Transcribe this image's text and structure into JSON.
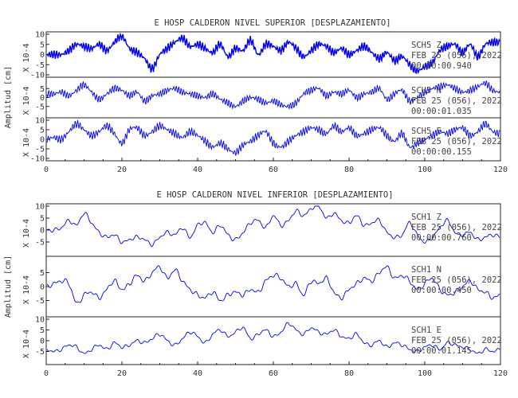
{
  "chart_data": [
    {
      "type": "line",
      "title": "E HOSP CALDERON NIVEL SUPERIOR [DESPLAZAMIENTO]",
      "ylabel": "Amplitud [cm]",
      "xlim": [
        0,
        120
      ],
      "x_ticks": [
        0,
        20,
        40,
        60,
        80,
        100,
        120
      ],
      "color": "#0000ee",
      "channels": [
        {
          "unit_label": "X 10-4",
          "y_ticks": [
            10,
            5,
            0,
            -5,
            -10
          ],
          "ylim": [
            -10,
            10
          ],
          "annotation": [
            "SCH5   Z",
            "FEB 25 (056), 2022",
            "00:00:00.940"
          ],
          "x": [
            0,
            2,
            4,
            6,
            8,
            10,
            12,
            14,
            16,
            18,
            20,
            22,
            24,
            26,
            28,
            30,
            32,
            34,
            36,
            38,
            40,
            42,
            44,
            46,
            48,
            50,
            52,
            54,
            56,
            58,
            60,
            62,
            64,
            66,
            68,
            70,
            72,
            74,
            76,
            78,
            80,
            82,
            84,
            86,
            88,
            90,
            92,
            94,
            96,
            98,
            100,
            102,
            104,
            106,
            108,
            110,
            112,
            114,
            116,
            118,
            120
          ],
          "values": [
            0,
            0,
            0,
            2,
            5,
            4,
            3,
            5,
            2,
            6,
            9,
            3,
            1,
            -2,
            -7,
            0,
            3,
            6,
            8,
            4,
            5,
            3,
            1,
            5,
            -1,
            3,
            2,
            7,
            0,
            5,
            4,
            2,
            6,
            3,
            -1,
            2,
            5,
            4,
            1,
            3,
            0,
            2,
            4,
            1,
            -2,
            1,
            -3,
            -1,
            -5,
            -8,
            -6,
            -4,
            2,
            4,
            5,
            1,
            5,
            -1,
            5,
            6,
            6
          ]
        },
        {
          "unit_label": "X 10-4",
          "y_ticks": [
            5,
            0,
            -5
          ],
          "ylim": [
            -10,
            10
          ],
          "annotation": [
            "SCH5   N",
            "FEB 25 (056), 2022",
            "00:00:01.035"
          ],
          "x": [
            0,
            2,
            4,
            6,
            8,
            10,
            12,
            14,
            16,
            18,
            20,
            22,
            24,
            26,
            28,
            30,
            32,
            34,
            36,
            38,
            40,
            42,
            44,
            46,
            48,
            50,
            52,
            54,
            56,
            58,
            60,
            62,
            64,
            66,
            68,
            70,
            72,
            74,
            76,
            78,
            80,
            82,
            84,
            86,
            88,
            90,
            92,
            94,
            96,
            98,
            100,
            102,
            104,
            106,
            108,
            110,
            112,
            114,
            116,
            118,
            120
          ],
          "values": [
            2,
            2,
            3,
            1,
            4,
            7,
            3,
            -1,
            2,
            5,
            4,
            1,
            3,
            -2,
            1,
            2,
            4,
            5,
            3,
            2,
            1,
            0,
            2,
            -1,
            -3,
            -5,
            -2,
            0,
            -1,
            -3,
            -2,
            -4,
            -5,
            -3,
            2,
            4,
            5,
            1,
            3,
            2,
            4,
            0,
            2,
            3,
            5,
            -1,
            2,
            4,
            -2,
            0,
            3,
            5,
            6,
            7,
            5,
            3,
            4,
            6,
            8,
            4,
            3
          ]
        },
        {
          "unit_label": "X 10-4",
          "y_ticks": [
            10,
            5,
            0,
            -5,
            -10
          ],
          "ylim": [
            -10,
            10
          ],
          "annotation": [
            "SCH5   E",
            "FEB 25 (056), 2022",
            "00:00:00.155"
          ],
          "x": [
            0,
            2,
            4,
            6,
            8,
            10,
            12,
            14,
            16,
            18,
            20,
            22,
            24,
            26,
            28,
            30,
            32,
            34,
            36,
            38,
            40,
            42,
            44,
            46,
            48,
            50,
            52,
            54,
            56,
            58,
            60,
            62,
            64,
            66,
            68,
            70,
            72,
            74,
            76,
            78,
            80,
            82,
            84,
            86,
            88,
            90,
            92,
            94,
            96,
            98,
            100,
            102,
            104,
            106,
            108,
            110,
            112,
            114,
            116,
            118,
            120
          ],
          "values": [
            0,
            1,
            0,
            4,
            8,
            5,
            2,
            4,
            7,
            3,
            -2,
            5,
            6,
            2,
            4,
            7,
            5,
            3,
            1,
            4,
            2,
            -1,
            -4,
            -2,
            -5,
            -7,
            -3,
            -1,
            2,
            4,
            -2,
            -4,
            -1,
            2,
            4,
            6,
            5,
            3,
            7,
            4,
            6,
            2,
            3,
            5,
            6,
            2,
            -1,
            3,
            -4,
            -2,
            0,
            2,
            4,
            3,
            5,
            6,
            2,
            4,
            8,
            4,
            3
          ]
        }
      ]
    },
    {
      "type": "line",
      "title": "E HOSP CALDERON NIVEL INFERIOR [DESPLAZAMIENTO]",
      "ylabel": "Amplitud [cm]",
      "xlim": [
        0,
        120
      ],
      "x_ticks": [
        0,
        20,
        40,
        60,
        80,
        100,
        120
      ],
      "color": "#0000ee",
      "channels": [
        {
          "unit_label": "X 10-4",
          "y_ticks": [
            10,
            5,
            0,
            -5
          ],
          "ylim": [
            -10,
            10
          ],
          "annotation": [
            "SCH1   Z",
            "FEB 25 (056), 2022",
            "00:00:00.760"
          ],
          "x": [
            0,
            2,
            4,
            6,
            8,
            10,
            12,
            14,
            16,
            18,
            20,
            22,
            24,
            26,
            28,
            30,
            32,
            34,
            36,
            38,
            40,
            42,
            44,
            46,
            48,
            50,
            52,
            54,
            56,
            58,
            60,
            62,
            64,
            66,
            68,
            70,
            72,
            74,
            76,
            78,
            80,
            82,
            84,
            86,
            88,
            90,
            92,
            94,
            96,
            98,
            100,
            102,
            104,
            106,
            108,
            110,
            112,
            114,
            116,
            118,
            120
          ],
          "values": [
            0,
            0,
            1,
            4,
            2,
            7,
            3,
            -1,
            -3,
            -2,
            -5,
            -4,
            -3,
            -4,
            -6,
            -3,
            -1,
            -2,
            1,
            -3,
            2,
            3,
            -1,
            2,
            -2,
            -4,
            -1,
            3,
            4,
            1,
            6,
            2,
            4,
            8,
            6,
            9,
            10,
            5,
            7,
            4,
            3,
            6,
            2,
            3,
            4,
            -1,
            -3,
            -2,
            3,
            -2,
            -5,
            -3,
            1,
            4,
            -1,
            -2,
            -1,
            -4,
            -3,
            -2,
            -3
          ]
        },
        {
          "unit_label": "X 10-4",
          "y_ticks": [
            5,
            0,
            -5
          ],
          "ylim": [
            -10,
            10
          ],
          "annotation": [
            "SCH1   N",
            "FEB 25 (056), 2022",
            "00:00:00.450"
          ],
          "x": [
            0,
            2,
            4,
            6,
            8,
            10,
            12,
            14,
            16,
            18,
            20,
            22,
            24,
            26,
            28,
            30,
            32,
            34,
            36,
            38,
            40,
            42,
            44,
            46,
            48,
            50,
            52,
            54,
            56,
            58,
            60,
            62,
            64,
            66,
            68,
            70,
            72,
            74,
            76,
            78,
            80,
            82,
            84,
            86,
            88,
            90,
            92,
            94,
            96,
            98,
            100,
            102,
            104,
            106,
            108,
            110,
            112,
            114,
            116,
            118,
            120
          ],
          "values": [
            0,
            1,
            2,
            1,
            -6,
            -3,
            -2,
            -4,
            -1,
            2,
            -1,
            1,
            4,
            2,
            5,
            7,
            3,
            6,
            2,
            -1,
            -3,
            -4,
            -2,
            -5,
            -3,
            -2,
            -3,
            -1,
            -2,
            2,
            4,
            3,
            0,
            1,
            -3,
            2,
            1,
            3,
            -2,
            -4,
            -1,
            1,
            3,
            2,
            5,
            7,
            3,
            4,
            2,
            -1,
            1,
            3,
            -1,
            -3,
            -2,
            0,
            2,
            -1,
            -2,
            -4,
            -3
          ]
        },
        {
          "unit_label": "X 10-4",
          "y_ticks": [
            10,
            5,
            0,
            -5
          ],
          "ylim": [
            -10,
            10
          ],
          "annotation": [
            "SCH1   E",
            "FEB 25 (056), 2022",
            "00:00:01.145"
          ],
          "x": [
            0,
            2,
            4,
            6,
            8,
            10,
            12,
            14,
            16,
            18,
            20,
            22,
            24,
            26,
            28,
            30,
            32,
            34,
            36,
            38,
            40,
            42,
            44,
            46,
            48,
            50,
            52,
            54,
            56,
            58,
            60,
            62,
            64,
            66,
            68,
            70,
            72,
            74,
            76,
            78,
            80,
            82,
            84,
            86,
            88,
            90,
            92,
            94,
            96,
            98,
            100,
            102,
            104,
            106,
            108,
            110,
            112,
            114,
            116,
            118,
            120
          ],
          "values": [
            -4,
            -5,
            -4,
            -2,
            -3,
            -6,
            -4,
            -2,
            -4,
            -1,
            -3,
            -2,
            0,
            -1,
            1,
            3,
            0,
            -2,
            1,
            4,
            2,
            -1,
            3,
            5,
            2,
            4,
            6,
            1,
            3,
            5,
            2,
            4,
            8,
            5,
            3,
            6,
            4,
            3,
            5,
            2,
            1,
            3,
            -1,
            -2,
            0,
            -3,
            -1,
            -2,
            -4,
            -5,
            -3,
            -2,
            -4,
            -1,
            -2,
            -3,
            -4,
            -6,
            -4,
            -5,
            -4
          ]
        }
      ]
    }
  ]
}
